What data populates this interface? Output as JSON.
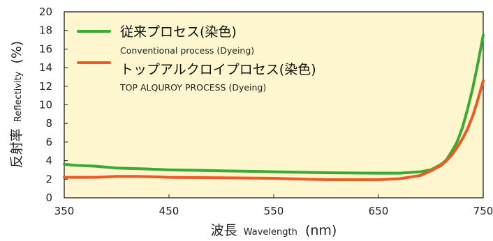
{
  "colors": {
    "plot_background": "#fdf6cf",
    "series_green": "#3aaa35",
    "series_orange": "#ef5a24",
    "frame": "#222222"
  },
  "chart_data": {
    "type": "line",
    "xlabel": {
      "main": "波長",
      "sub": "Wavelength",
      "unit": "(nm)"
    },
    "ylabel": {
      "main": "反射率",
      "sub": "Reflectivity",
      "unit": "(%)"
    },
    "xlim": [
      350,
      750
    ],
    "ylim": [
      0,
      20
    ],
    "xticks": [
      350,
      450,
      550,
      650,
      750
    ],
    "yticks": [
      0,
      2,
      4,
      6,
      8,
      10,
      12,
      14,
      16,
      18,
      20
    ],
    "grid": false,
    "legend_position": "top-left",
    "series": [
      {
        "name": "従来プロセス(染色)",
        "name_en": "Conventional process (Dyeing)",
        "color": "#3aaa35",
        "points": [
          [
            350,
            3.6
          ],
          [
            360,
            3.5
          ],
          [
            380,
            3.4
          ],
          [
            400,
            3.2
          ],
          [
            430,
            3.1
          ],
          [
            450,
            3.0
          ],
          [
            480,
            2.95
          ],
          [
            500,
            2.9
          ],
          [
            550,
            2.8
          ],
          [
            600,
            2.7
          ],
          [
            650,
            2.65
          ],
          [
            670,
            2.65
          ],
          [
            690,
            2.8
          ],
          [
            700,
            3.0
          ],
          [
            710,
            3.6
          ],
          [
            715,
            4.1
          ],
          [
            720,
            5.0
          ],
          [
            725,
            6.0
          ],
          [
            730,
            7.5
          ],
          [
            735,
            9.5
          ],
          [
            740,
            11.8
          ],
          [
            745,
            14.5
          ],
          [
            750,
            17.5
          ]
        ]
      },
      {
        "name": "トップアルクロイプロセス(染色)",
        "name_en": "TOP ALQUROY PROCESS (Dyeing)",
        "color": "#ef5a24",
        "points": [
          [
            350,
            2.2
          ],
          [
            380,
            2.2
          ],
          [
            400,
            2.3
          ],
          [
            420,
            2.3
          ],
          [
            440,
            2.25
          ],
          [
            450,
            2.2
          ],
          [
            500,
            2.15
          ],
          [
            550,
            2.1
          ],
          [
            600,
            1.95
          ],
          [
            650,
            1.95
          ],
          [
            670,
            2.05
          ],
          [
            690,
            2.4
          ],
          [
            700,
            2.9
          ],
          [
            710,
            3.5
          ],
          [
            715,
            4.0
          ],
          [
            720,
            4.6
          ],
          [
            725,
            5.4
          ],
          [
            730,
            6.3
          ],
          [
            735,
            7.4
          ],
          [
            740,
            8.8
          ],
          [
            745,
            10.6
          ],
          [
            750,
            12.6
          ]
        ]
      }
    ]
  }
}
